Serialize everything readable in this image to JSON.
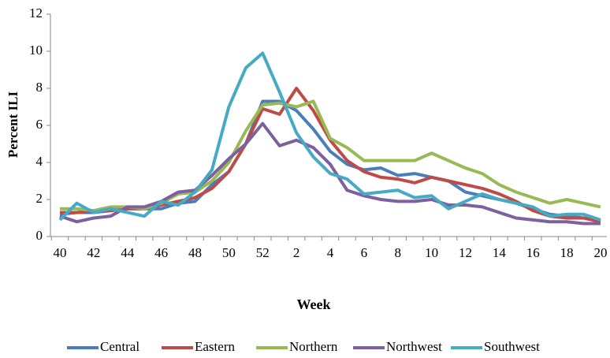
{
  "chart_data": {
    "type": "line",
    "ylabel": "Percent ILI",
    "xlabel": "Week",
    "categories": [
      "40",
      null,
      "42",
      null,
      "44",
      null,
      "46",
      null,
      "48",
      null,
      "50",
      null,
      "52",
      null,
      "2",
      null,
      "4",
      null,
      "6",
      null,
      "8",
      null,
      "10",
      null,
      "12",
      null,
      "14",
      null,
      "16",
      null,
      "18",
      null,
      "20"
    ],
    "series": [
      {
        "name": "Central",
        "color": "#4a7ebb",
        "values": [
          1.2,
          1.3,
          1.3,
          1.4,
          1.5,
          1.5,
          1.5,
          1.8,
          1.9,
          2.8,
          3.5,
          5.0,
          7.3,
          7.3,
          6.8,
          5.8,
          4.6,
          3.9,
          3.6,
          3.7,
          3.3,
          3.4,
          3.2,
          3.0,
          2.4,
          2.2,
          2.0,
          1.8,
          1.5,
          1.2,
          1.1,
          1.0,
          0.9
        ]
      },
      {
        "name": "Eastern",
        "color": "#be4b48",
        "values": [
          1.3,
          1.3,
          1.4,
          1.4,
          1.5,
          1.5,
          1.7,
          1.9,
          2.1,
          2.6,
          3.5,
          5.0,
          6.9,
          6.6,
          8.0,
          6.8,
          5.2,
          4.1,
          3.5,
          3.2,
          3.1,
          2.9,
          3.2,
          3.0,
          2.8,
          2.6,
          2.3,
          1.9,
          1.4,
          1.1,
          1.0,
          1.0,
          0.8
        ]
      },
      {
        "name": "Northern",
        "color": "#98b954",
        "values": [
          1.5,
          1.5,
          1.4,
          1.6,
          1.6,
          1.5,
          1.8,
          2.3,
          2.4,
          3.0,
          4.0,
          5.7,
          7.1,
          7.2,
          7.0,
          7.3,
          5.3,
          4.8,
          4.1,
          4.1,
          4.1,
          4.1,
          4.5,
          4.1,
          3.7,
          3.4,
          2.8,
          2.4,
          2.1,
          1.8,
          2.0,
          1.8,
          1.6
        ]
      },
      {
        "name": "Northwest",
        "color": "#7d60a0",
        "values": [
          1.1,
          0.8,
          1.0,
          1.1,
          1.6,
          1.6,
          1.9,
          2.4,
          2.5,
          3.3,
          4.2,
          5.0,
          6.1,
          4.9,
          5.2,
          4.8,
          3.9,
          2.5,
          2.2,
          2.0,
          1.9,
          1.9,
          2.0,
          1.7,
          1.7,
          1.6,
          1.3,
          1.0,
          0.9,
          0.8,
          0.8,
          0.7,
          0.7
        ]
      },
      {
        "name": "Southwest",
        "color": "#46aac5",
        "values": [
          0.9,
          1.8,
          1.3,
          1.5,
          1.3,
          1.1,
          1.9,
          1.7,
          2.4,
          3.6,
          7.0,
          9.1,
          9.9,
          7.8,
          5.6,
          4.3,
          3.4,
          3.1,
          2.3,
          2.4,
          2.5,
          2.1,
          2.2,
          1.5,
          1.9,
          2.3,
          2.0,
          1.8,
          1.6,
          1.1,
          1.2,
          1.2,
          0.9
        ]
      }
    ],
    "ylim": [
      0,
      12
    ],
    "yticks": [
      0,
      2,
      4,
      6,
      8,
      10,
      12
    ],
    "grid": false,
    "legend": "bottom"
  }
}
